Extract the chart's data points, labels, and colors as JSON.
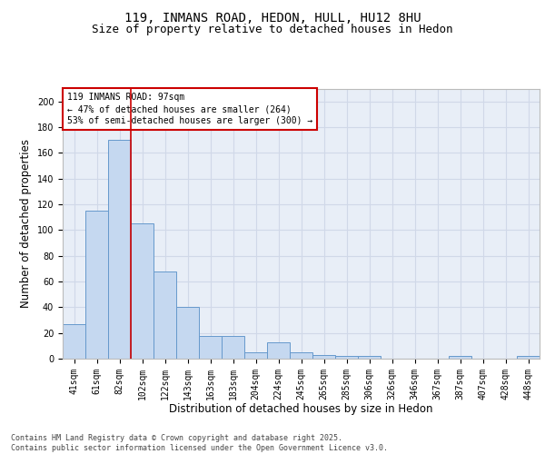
{
  "title_line1": "119, INMANS ROAD, HEDON, HULL, HU12 8HU",
  "title_line2": "Size of property relative to detached houses in Hedon",
  "xlabel": "Distribution of detached houses by size in Hedon",
  "ylabel": "Number of detached properties",
  "categories": [
    "41sqm",
    "61sqm",
    "82sqm",
    "102sqm",
    "122sqm",
    "143sqm",
    "163sqm",
    "183sqm",
    "204sqm",
    "224sqm",
    "245sqm",
    "265sqm",
    "285sqm",
    "306sqm",
    "326sqm",
    "346sqm",
    "367sqm",
    "387sqm",
    "407sqm",
    "428sqm",
    "448sqm"
  ],
  "values": [
    27,
    115,
    170,
    105,
    68,
    40,
    18,
    18,
    5,
    13,
    5,
    3,
    2,
    2,
    0,
    0,
    0,
    2,
    0,
    0,
    2
  ],
  "bar_color": "#c5d8f0",
  "bar_edge_color": "#6699cc",
  "background_color": "#e8eef7",
  "grid_color": "#d0d8e8",
  "vline_x": 2.5,
  "vline_color": "#cc0000",
  "annotation_text": "119 INMANS ROAD: 97sqm\n← 47% of detached houses are smaller (264)\n53% of semi-detached houses are larger (300) →",
  "annotation_box_color": "#cc0000",
  "ylim": [
    0,
    210
  ],
  "yticks": [
    0,
    20,
    40,
    60,
    80,
    100,
    120,
    140,
    160,
    180,
    200
  ],
  "footer": "Contains HM Land Registry data © Crown copyright and database right 2025.\nContains public sector information licensed under the Open Government Licence v3.0.",
  "title_fontsize": 10,
  "subtitle_fontsize": 9,
  "tick_fontsize": 7,
  "label_fontsize": 8.5
}
